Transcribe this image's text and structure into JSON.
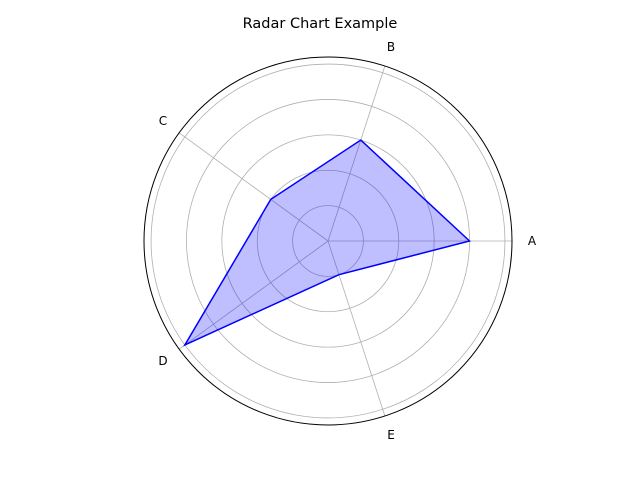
{
  "chart_data": {
    "type": "radar",
    "title": "Radar Chart Example",
    "categories": [
      "A",
      "B",
      "C",
      "D",
      "E"
    ],
    "series": [
      {
        "name": "",
        "values": [
          4,
          3,
          2,
          5,
          1
        ],
        "line_color": "#0000ff",
        "fill_color": "#0000ff",
        "fill_opacity": 0.25
      }
    ],
    "rlim": [
      0,
      5.2
    ],
    "r_gridlines": [
      1,
      2,
      3,
      4,
      5
    ],
    "start_angle_deg": 0,
    "direction": "counterclockwise",
    "grid": true,
    "legend": "none"
  }
}
